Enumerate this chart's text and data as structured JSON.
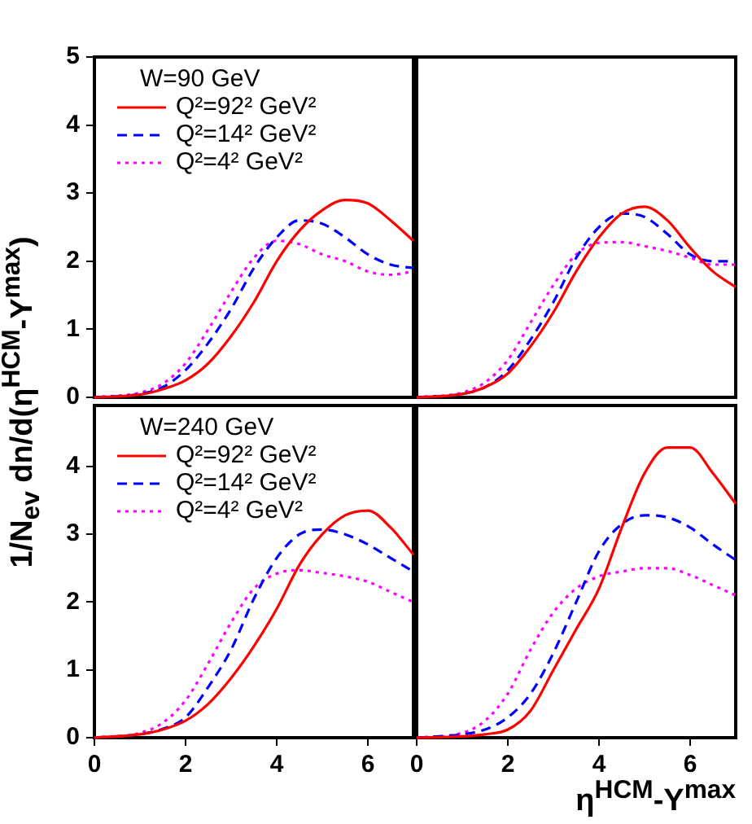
{
  "chart_data": [
    {
      "type": "line",
      "ylabel": "1/N$_{ev}$ dn/d(η$^{HCM}$-Y$^{max}$)",
      "legend_title": "W=90 GeV",
      "legend": "top left",
      "tick_labels": "y",
      "grid": false,
      "marker": "none",
      "xlim": [
        0,
        7
      ],
      "xticks": [
        0,
        2,
        4,
        6
      ],
      "ylim": [
        0,
        5
      ],
      "yticks": [
        0,
        1,
        2,
        3,
        4,
        5
      ],
      "x": [
        0,
        1,
        1.5,
        2,
        2.5,
        3,
        3.5,
        4,
        4.5,
        5,
        5.5,
        6,
        6.5,
        7
      ],
      "series": [
        {
          "name": "Q²=92² GeV²",
          "color": "#ff0000",
          "line_style": "solid",
          "values": [
            0,
            0.04,
            0.12,
            0.25,
            0.5,
            0.9,
            1.4,
            2.0,
            2.45,
            2.75,
            2.9,
            2.85,
            2.6,
            2.3
          ]
        },
        {
          "name": "Q²=14² GeV²",
          "color": "#0000ff",
          "line_style": "dashed",
          "values": [
            0,
            0.05,
            0.15,
            0.4,
            0.8,
            1.3,
            1.9,
            2.35,
            2.6,
            2.55,
            2.35,
            2.1,
            1.95,
            1.9
          ]
        },
        {
          "name": "Q²=4² GeV²",
          "color": "#ff00ff",
          "line_style": "dotted",
          "values": [
            0,
            0.07,
            0.2,
            0.5,
            1.0,
            1.55,
            2.05,
            2.3,
            2.25,
            2.1,
            2.0,
            1.85,
            1.8,
            1.85
          ]
        }
      ]
    },
    {
      "type": "line",
      "tick_labels": false,
      "grid": false,
      "marker": "none",
      "xlim": [
        0,
        7
      ],
      "xticks": [
        0,
        2,
        4,
        6
      ],
      "ylim": [
        0,
        5
      ],
      "yticks": [
        0,
        1,
        2,
        3,
        4,
        5
      ],
      "x": [
        0,
        1,
        1.5,
        2,
        2.5,
        3,
        3.5,
        4,
        4.5,
        5,
        5.5,
        6,
        6.5,
        7
      ],
      "series": [
        {
          "color": "#ff0000",
          "line_style": "solid",
          "values": [
            0,
            0.05,
            0.15,
            0.35,
            0.75,
            1.25,
            1.85,
            2.35,
            2.7,
            2.8,
            2.6,
            2.2,
            1.85,
            1.62
          ]
        },
        {
          "color": "#0000ff",
          "line_style": "dashed",
          "values": [
            0,
            0.05,
            0.15,
            0.4,
            0.85,
            1.4,
            2.05,
            2.5,
            2.7,
            2.65,
            2.4,
            2.1,
            2.0,
            2.0
          ]
        },
        {
          "color": "#ff00ff",
          "line_style": "dotted",
          "values": [
            0,
            0.07,
            0.22,
            0.55,
            1.1,
            1.65,
            2.1,
            2.27,
            2.28,
            2.22,
            2.15,
            2.05,
            1.95,
            1.95
          ]
        }
      ]
    },
    {
      "type": "line",
      "legend_title": "W=240 GeV",
      "legend": "top left",
      "grid": false,
      "marker": "none",
      "xlim": [
        0,
        7
      ],
      "xticks": [
        0,
        2,
        4,
        6
      ],
      "ylim": [
        0,
        4.9
      ],
      "yticks": [
        0,
        1,
        2,
        3,
        4
      ],
      "x": [
        0,
        1,
        1.5,
        2,
        2.5,
        3,
        3.5,
        4,
        4.5,
        5,
        5.5,
        6,
        6.5,
        7
      ],
      "series": [
        {
          "name": "Q²=92² GeV²",
          "color": "#ff0000",
          "line_style": "solid",
          "values": [
            0,
            0.05,
            0.12,
            0.25,
            0.5,
            0.88,
            1.35,
            1.9,
            2.55,
            3.0,
            3.28,
            3.35,
            3.1,
            2.7
          ]
        },
        {
          "name": "Q²=14² GeV²",
          "color": "#0000ff",
          "line_style": "dashed",
          "values": [
            0,
            0.05,
            0.13,
            0.3,
            0.75,
            1.3,
            2.05,
            2.65,
            3.0,
            3.07,
            3.0,
            2.85,
            2.65,
            2.45
          ]
        },
        {
          "name": "Q²=4² GeV²",
          "color": "#ff00ff",
          "line_style": "dotted",
          "values": [
            0,
            0.07,
            0.22,
            0.55,
            1.1,
            1.7,
            2.2,
            2.42,
            2.47,
            2.43,
            2.38,
            2.3,
            2.15,
            2.0
          ]
        }
      ]
    },
    {
      "type": "line",
      "xlabel": "η$^{HCM}$-Y$^{max}$",
      "tick_labels": "x",
      "grid": false,
      "marker": "none",
      "xlim": [
        0,
        7
      ],
      "xticks": [
        0,
        2,
        4,
        6
      ],
      "ylim": [
        0,
        4.9
      ],
      "yticks": [
        0,
        1,
        2,
        3,
        4
      ],
      "x": [
        0,
        1,
        1.5,
        2,
        2.5,
        3,
        3.5,
        4,
        4.5,
        5,
        5.5,
        6,
        6.5,
        7
      ],
      "series": [
        {
          "color": "#ff0000",
          "line_style": "solid",
          "values": [
            0,
            0.02,
            0.05,
            0.12,
            0.4,
            1.0,
            1.6,
            2.2,
            3.1,
            3.9,
            4.28,
            4.28,
            3.9,
            3.45
          ]
        },
        {
          "color": "#0000ff",
          "line_style": "dashed",
          "values": [
            0,
            0.05,
            0.12,
            0.3,
            0.65,
            1.25,
            2.0,
            2.75,
            3.15,
            3.28,
            3.25,
            3.1,
            2.85,
            2.62
          ]
        },
        {
          "color": "#ff00ff",
          "line_style": "dotted",
          "values": [
            0,
            0.07,
            0.25,
            0.65,
            1.3,
            1.85,
            2.2,
            2.38,
            2.45,
            2.5,
            2.5,
            2.4,
            2.25,
            2.1
          ]
        }
      ]
    }
  ]
}
